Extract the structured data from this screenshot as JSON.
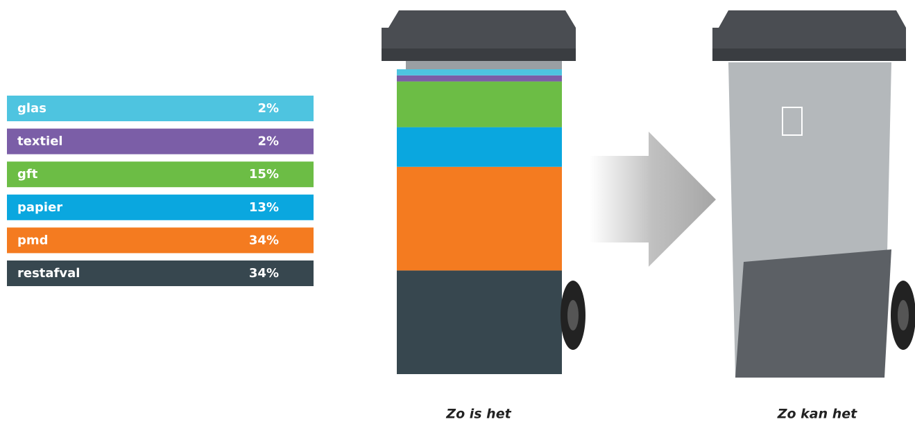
{
  "chart_data": {
    "type": "stacked-bin",
    "categories": [
      "glas",
      "textiel",
      "gft",
      "papier",
      "pmd",
      "restafval"
    ],
    "values": [
      2,
      2,
      15,
      13,
      34,
      34
    ],
    "value_labels": [
      "2%",
      "2%",
      "15%",
      "13%",
      "34%",
      "34%"
    ],
    "colors": [
      "#4ec4e0",
      "#7b5ea7",
      "#6cbd45",
      "#0aa7df",
      "#f47b20",
      "#37474f"
    ],
    "annotations": [
      "Zo is het",
      "Zo kan het"
    ]
  }
}
